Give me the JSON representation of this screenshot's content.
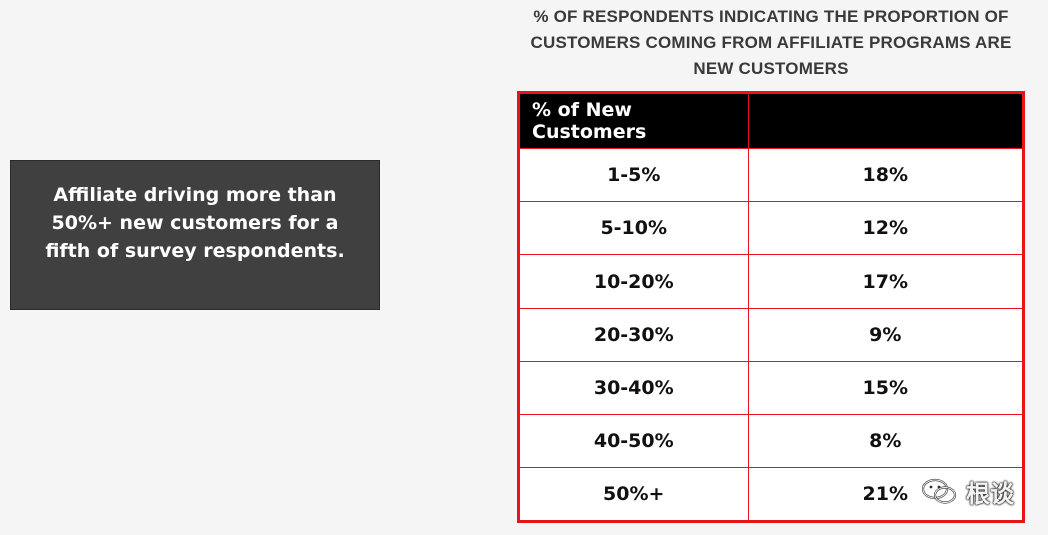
{
  "callout": {
    "text": "Affiliate driving more than 50%+ new customers for a fifth of survey respondents."
  },
  "chart_data": {
    "type": "table",
    "title": "% OF RESPONDENTS INDICATING THE PROPORTION OF CUSTOMERS COMING FROM AFFILIATE PROGRAMS ARE NEW CUSTOMERS",
    "columns": [
      "% of New Customers",
      ""
    ],
    "rows": [
      {
        "category": "1-5%",
        "value": "18%"
      },
      {
        "category": "5-10%",
        "value": "12%"
      },
      {
        "category": "10-20%",
        "value": "17%"
      },
      {
        "category": "20-30%",
        "value": "9%"
      },
      {
        "category": "30-40%",
        "value": "15%"
      },
      {
        "category": "40-50%",
        "value": "8%"
      },
      {
        "category": "50%+",
        "value": "21%"
      }
    ],
    "colors": {
      "border": "#e8141c",
      "header_bg": "#000000"
    }
  },
  "watermark": {
    "icon": "wechat-icon",
    "text": "根谈"
  }
}
